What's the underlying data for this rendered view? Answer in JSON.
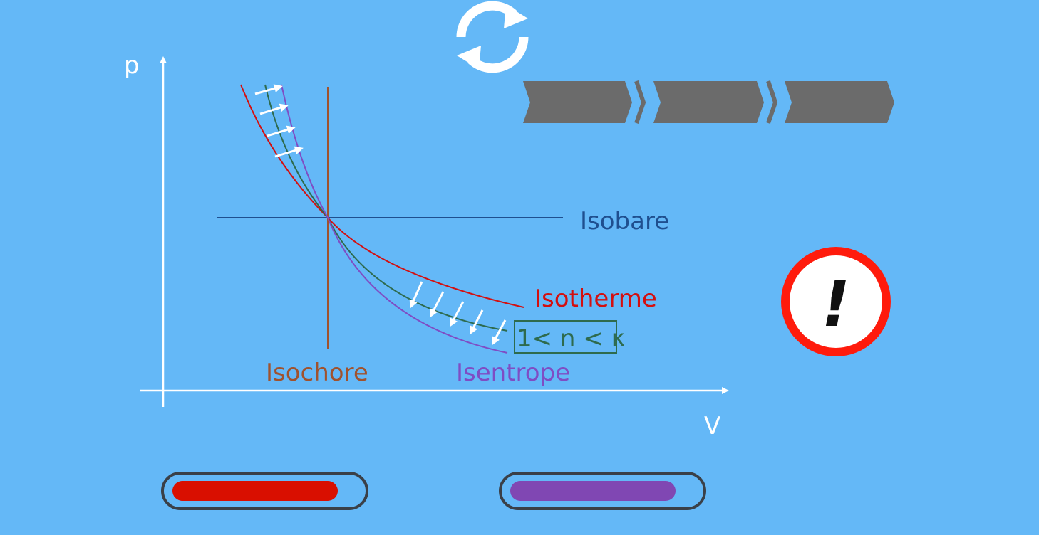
{
  "diagram": {
    "axis_y_label": "p",
    "axis_x_label": "V",
    "curves": {
      "isobare": {
        "label": "Isobare",
        "color": "#1f4f8f"
      },
      "isochore": {
        "label": "Isochore",
        "color": "#a0522d"
      },
      "isotherme": {
        "label": "Isotherme",
        "color": "#d40f0f"
      },
      "polytrope": {
        "label": "1< n < κ",
        "color": "#2e6b4e"
      },
      "isentrope": {
        "label": "Isentrope",
        "color": "#7f4dc4"
      }
    },
    "arrow_color": "#ffffff",
    "axis_color": "#ffffff"
  },
  "controls": {
    "reload_icon": "reload-icon",
    "progress_steps": 3,
    "step_color": "#6b6b6b",
    "warning_icon": "warning-icon",
    "warning_glyph": "!",
    "warning_ring_color": "#ff1b0c"
  },
  "sliders": [
    {
      "name": "isotherm-slider",
      "color": "#d90f00",
      "level": 0.9
    },
    {
      "name": "isentrope-slider",
      "color": "#8047b3",
      "level": 0.9
    }
  ]
}
